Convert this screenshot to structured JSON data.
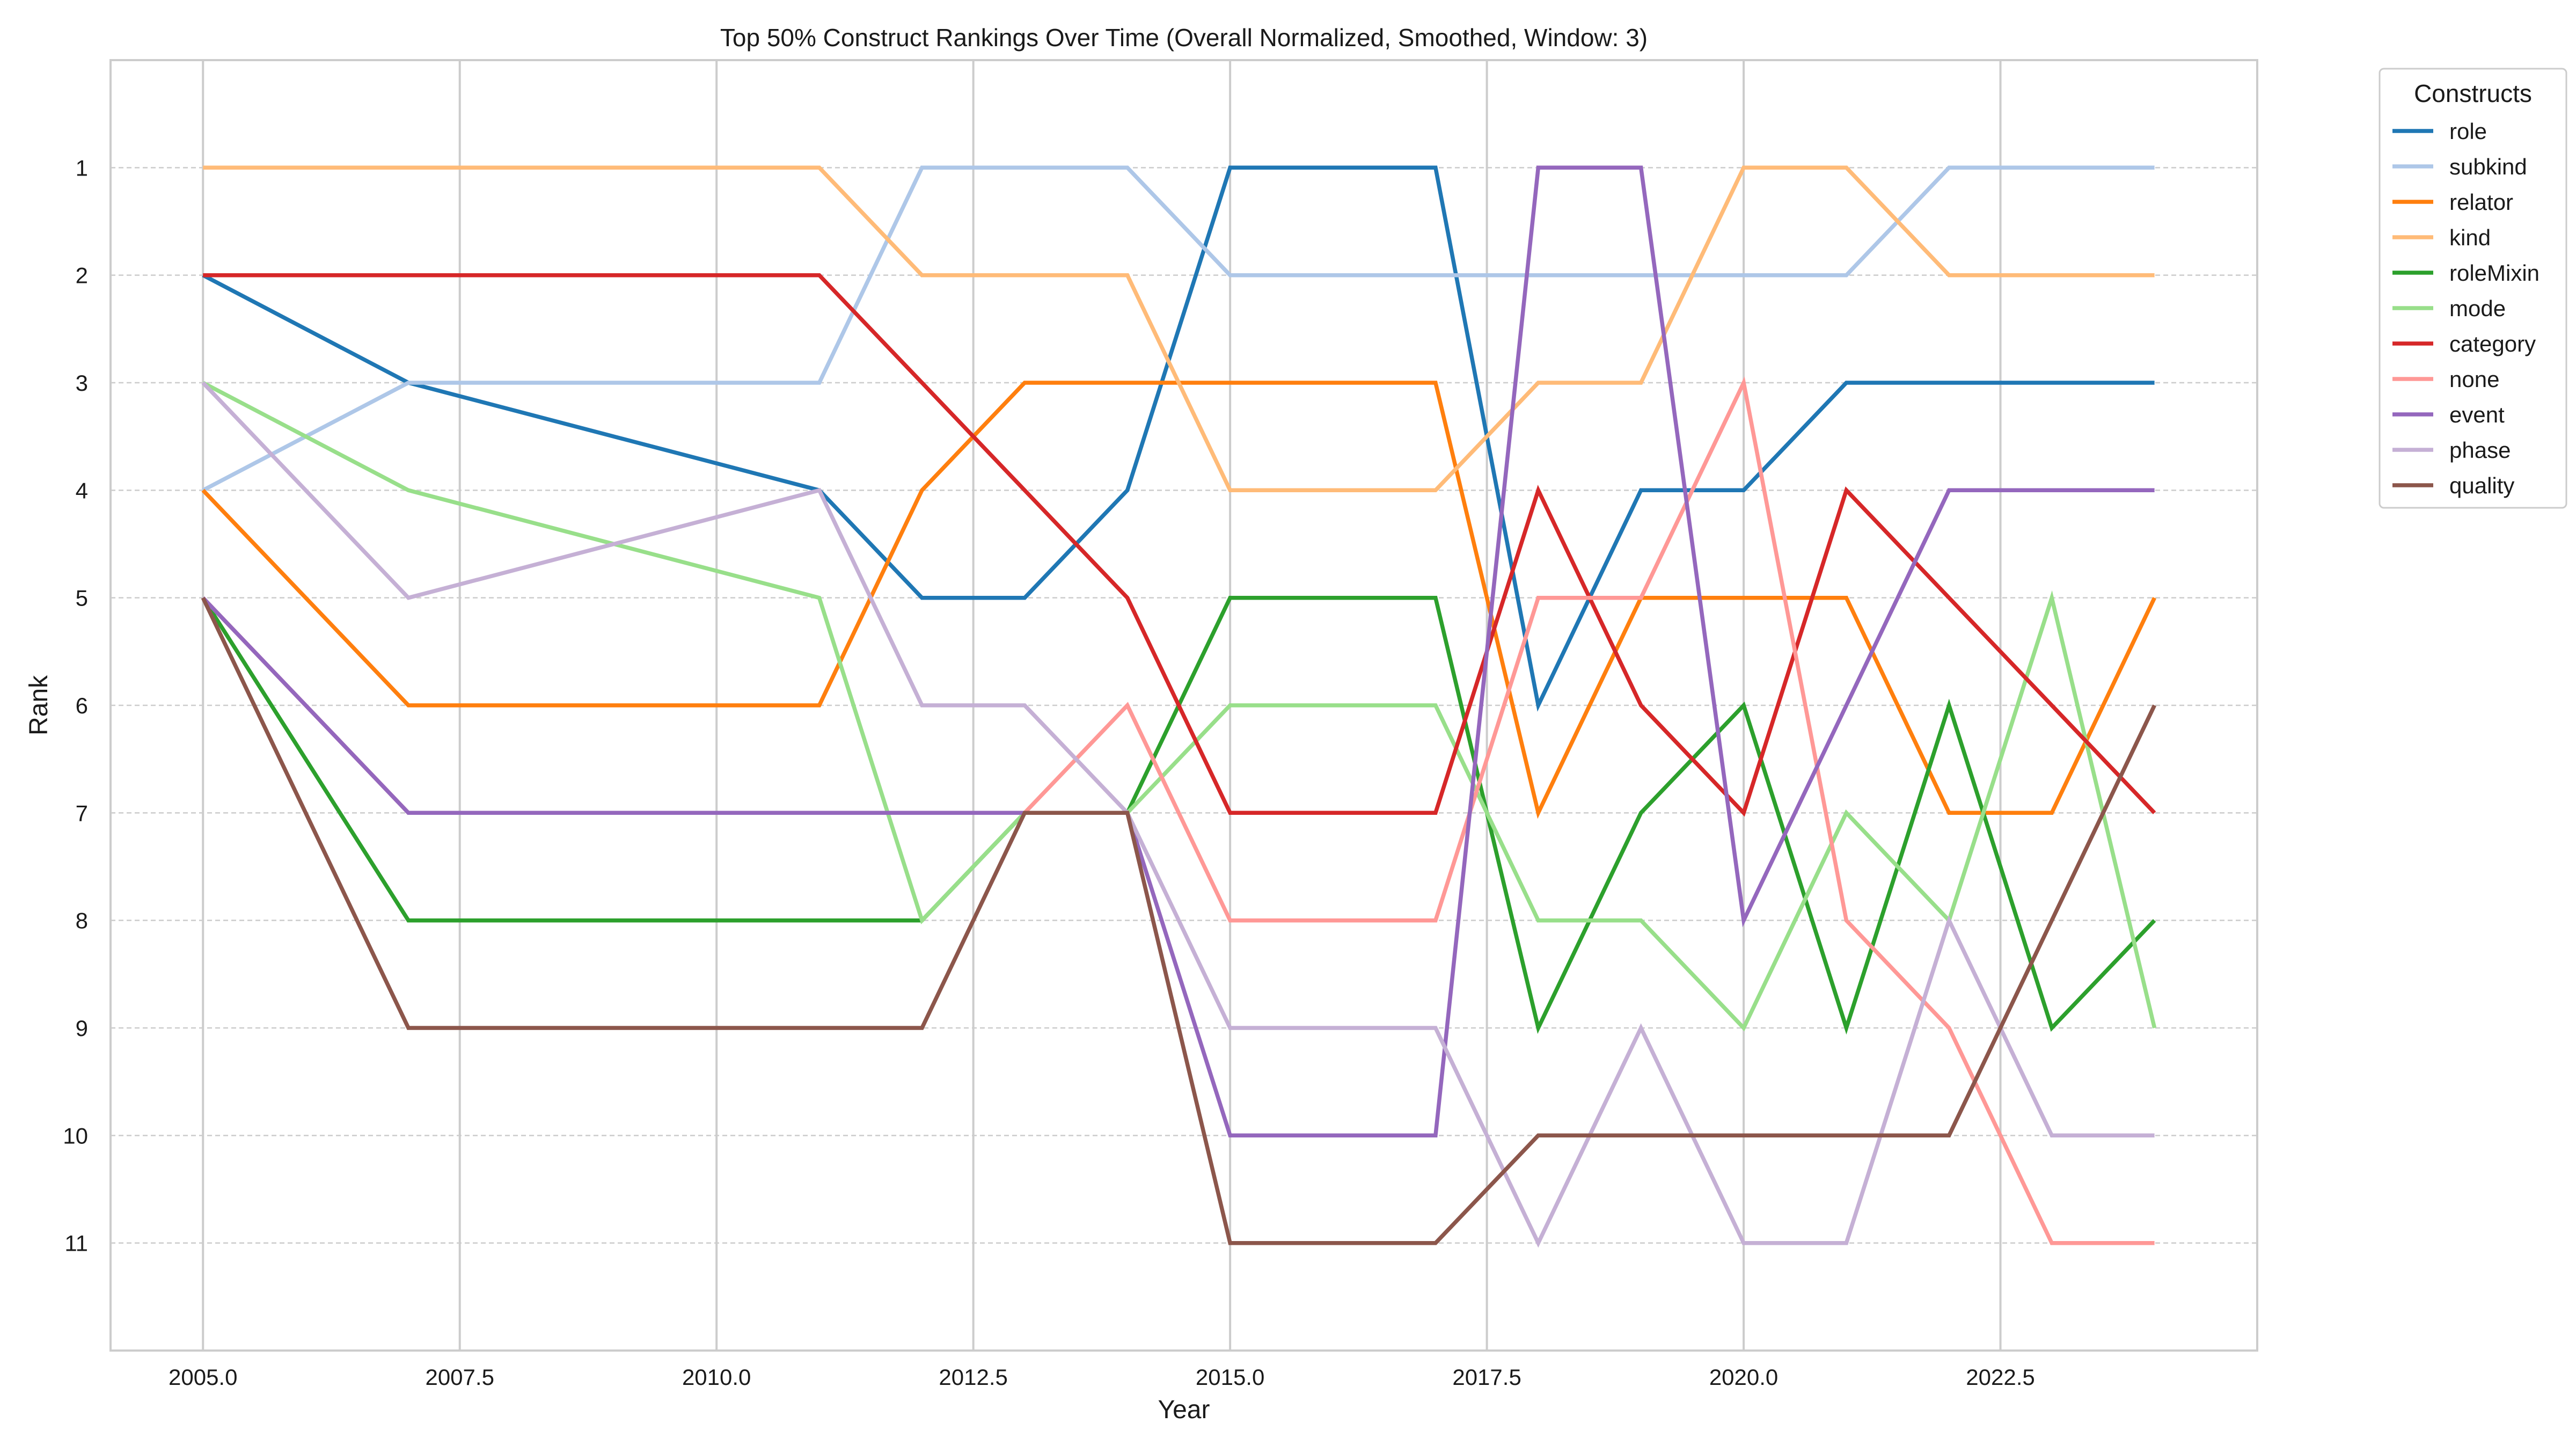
{
  "chart_data": {
    "type": "line",
    "title": "Top 50% Construct Rankings Over Time (Overall Normalized, Smoothed, Window: 3)",
    "xlabel": "Year",
    "ylabel": "Rank",
    "xlim": [
      2004.1,
      2025.0
    ],
    "ylim": [
      12,
      0
    ],
    "y_inverted": true,
    "x_ticks": [
      2005.0,
      2007.5,
      2010.0,
      2012.5,
      2015.0,
      2017.5,
      2020.0,
      2022.5
    ],
    "x_tick_labels": [
      "2005.0",
      "2007.5",
      "2010.0",
      "2012.5",
      "2015.0",
      "2017.5",
      "2020.0",
      "2022.5"
    ],
    "y_ticks": [
      1,
      2,
      3,
      4,
      5,
      6,
      7,
      8,
      9,
      10,
      11
    ],
    "y_tick_labels": [
      "1",
      "2",
      "3",
      "4",
      "5",
      "6",
      "7",
      "8",
      "9",
      "10",
      "11"
    ],
    "grid": true,
    "legend": {
      "title": "Constructs",
      "position": "outside-top-right"
    },
    "x": [
      2005,
      2007,
      2011,
      2012,
      2013,
      2014,
      2015,
      2017,
      2018,
      2019,
      2020,
      2021,
      2022,
      2023,
      2024
    ],
    "series": [
      {
        "name": "role",
        "color": "#1f77b4",
        "values": [
          2,
          3,
          4,
          5,
          5,
          4,
          1,
          1,
          6,
          4,
          4,
          3,
          3,
          3,
          3
        ]
      },
      {
        "name": "subkind",
        "color": "#aec7e8",
        "values": [
          4,
          3,
          3,
          1,
          1,
          1,
          2,
          2,
          2,
          2,
          2,
          2,
          1,
          1,
          1
        ]
      },
      {
        "name": "relator",
        "color": "#ff7f0e",
        "values": [
          4,
          6,
          6,
          4,
          3,
          3,
          3,
          3,
          7,
          5,
          5,
          5,
          7,
          7,
          5
        ]
      },
      {
        "name": "kind",
        "color": "#ffbb78",
        "values": [
          1,
          1,
          1,
          2,
          2,
          2,
          4,
          4,
          3,
          3,
          1,
          1,
          2,
          2,
          2
        ]
      },
      {
        "name": "roleMixin",
        "color": "#2ca02c",
        "values": [
          5,
          8,
          8,
          8,
          7,
          7,
          5,
          5,
          9,
          7,
          6,
          9,
          6,
          9,
          8
        ]
      },
      {
        "name": "mode",
        "color": "#98df8a",
        "values": [
          3,
          4,
          5,
          8,
          7,
          7,
          6,
          6,
          8,
          8,
          9,
          7,
          8,
          5,
          9
        ]
      },
      {
        "name": "category",
        "color": "#d62728",
        "values": [
          2,
          2,
          2,
          3,
          4,
          5,
          7,
          7,
          4,
          6,
          7,
          4,
          5,
          6,
          7
        ]
      },
      {
        "name": "none",
        "color": "#ff9896",
        "values": [
          5,
          7,
          7,
          7,
          7,
          6,
          8,
          8,
          5,
          5,
          3,
          8,
          9,
          11,
          11
        ]
      },
      {
        "name": "event",
        "color": "#9467bd",
        "values": [
          5,
          7,
          7,
          7,
          7,
          7,
          10,
          10,
          1,
          1,
          8,
          6,
          4,
          4,
          4
        ]
      },
      {
        "name": "phase",
        "color": "#c5b0d5",
        "values": [
          3,
          5,
          4,
          6,
          6,
          7,
          9,
          9,
          11,
          9,
          11,
          11,
          8,
          10,
          10
        ]
      },
      {
        "name": "quality",
        "color": "#8c564b",
        "values": [
          5,
          9,
          9,
          9,
          7,
          7,
          11,
          11,
          10,
          10,
          10,
          10,
          10,
          8,
          6
        ]
      }
    ]
  }
}
